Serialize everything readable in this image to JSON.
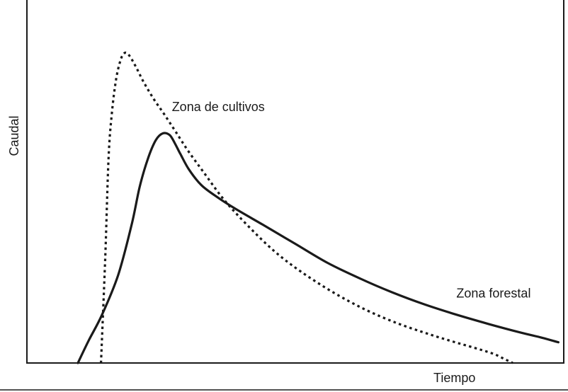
{
  "chart_data": {
    "type": "line",
    "title": "",
    "xlabel": "Tiempo",
    "ylabel": "Caudal",
    "xlim": [
      0,
      100
    ],
    "ylim": [
      0,
      100
    ],
    "grid": false,
    "legend": "none",
    "series": [
      {
        "name": "Zona de cultivos",
        "style": "dotted",
        "color": "#1a1a1a",
        "label_at": [
          27,
          73
        ],
        "x": [
          13.8,
          14.6,
          15.2,
          15.8,
          16.6,
          17.4,
          18.0,
          18.6,
          19.3,
          20.4,
          21.7,
          23.6,
          25.6,
          27.7,
          30.0,
          32.8,
          36.6,
          41.0,
          46.0,
          51.0,
          57.0,
          63.0,
          69.0,
          75.0,
          80.0,
          84.0,
          87.0,
          89.0,
          90.5
        ],
        "y": [
          0,
          31,
          59,
          72,
          82,
          87.5,
          89.5,
          89.8,
          88.5,
          85.5,
          81.5,
          76.5,
          72,
          67,
          61.5,
          55.5,
          47.5,
          40,
          32.5,
          26.5,
          20.5,
          15.5,
          11.5,
          8.3,
          5.9,
          4.1,
          2.6,
          1.1,
          0
        ]
      },
      {
        "name": "Zona forestal",
        "style": "solid",
        "color": "#1a1a1a",
        "label_at": [
          80,
          19
        ],
        "x": [
          9.5,
          11.5,
          14.0,
          17.0,
          19.5,
          21.0,
          22.5,
          24.0,
          25.3,
          26.6,
          27.6,
          28.6,
          30.2,
          32.5,
          35.5,
          39.0,
          44.0,
          50.0,
          56.0,
          62.0,
          68.0,
          74.0,
          80.0,
          86.0,
          92.0,
          96.0,
          99.0
        ],
        "y": [
          0,
          6.5,
          14,
          25.5,
          40,
          51,
          59,
          64.5,
          66.5,
          66,
          63.5,
          60.5,
          56,
          51.5,
          48,
          44.5,
          40,
          34.5,
          29,
          24.5,
          20.5,
          17,
          14,
          11.3,
          8.8,
          7.3,
          6.0
        ]
      }
    ]
  }
}
